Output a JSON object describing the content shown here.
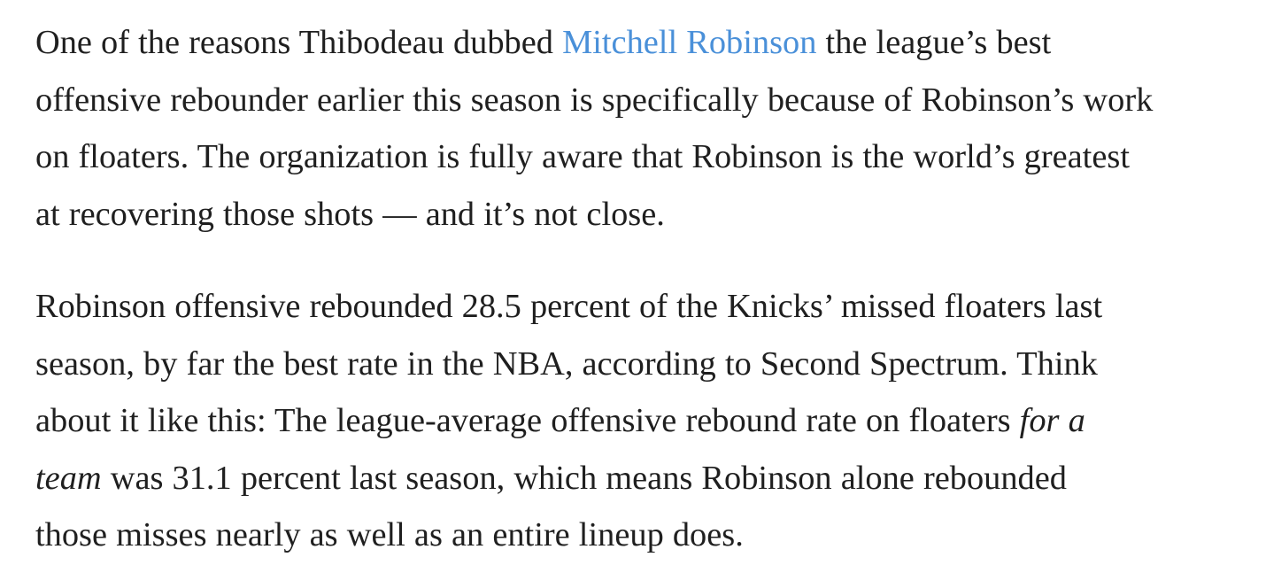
{
  "article": {
    "paragraph_1": {
      "lines": [
        {
          "before": "One of the reasons Thibodeau dubbed ",
          "link": "Mitchell Robinson",
          "after": " the league’s best"
        },
        "offensive rebounder earlier this season is specifically because of Robinson’s work",
        "on floaters. The organization is fully aware that Robinson is the world’s greatest",
        "at recovering those shots — and it’s not close."
      ]
    },
    "paragraph_2": {
      "lines": [
        "Robinson offensive rebounded 28.5 percent of the Knicks’ missed floaters last",
        "season, by far the best rate in the NBA, according to Second Spectrum. Think",
        {
          "before": "about it like this: The league-average offensive rebound rate on floaters ",
          "italic": "for a"
        },
        {
          "italic": "team",
          "after": " was 31.1 percent last season, which means Robinson alone rebounded"
        },
        "those misses nearly as well as an entire lineup does."
      ]
    }
  },
  "colors": {
    "text": "#1f1f1f",
    "link": "#4a90d9",
    "background": "#ffffff"
  }
}
